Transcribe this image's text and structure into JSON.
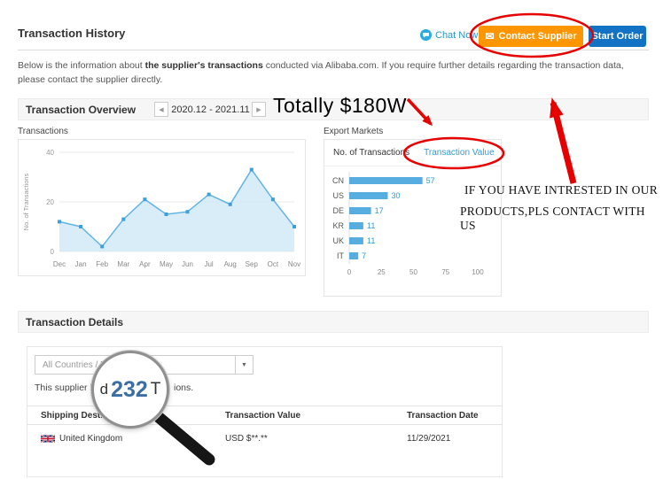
{
  "page": {
    "title": "Transaction History"
  },
  "header": {
    "chat_now": "Chat Now!",
    "contact_supplier": "Contact Supplier",
    "start_order": "Start Order"
  },
  "intro": {
    "pre": "Below is the information about ",
    "bold": "the supplier's transactions",
    "post": " conducted via Alibaba.com. If you require further details regarding the transaction data, please contact the supplier directly."
  },
  "overview": {
    "title": "Transaction Overview",
    "date_range": "2020.12 - 2021.11"
  },
  "annotations": {
    "total": "Totally $180W",
    "promo_line1": "IF YOU HAVE INTRESTED IN OUR",
    "promo_line2": "PRODUCTS,PLS CONTACT WITH US",
    "magnifier_pre": "d",
    "magnifier_number": "232",
    "magnifier_post": "T"
  },
  "icons": {
    "prev_arrow": "◀",
    "next_arrow": "▶",
    "dropdown_caret": "▼",
    "envelope": "✉"
  },
  "chart_data": [
    {
      "type": "area",
      "title": "Transactions",
      "ylabel": "No. of Transactions",
      "categories": [
        "Dec",
        "Jan",
        "Feb",
        "Mar",
        "Apr",
        "May",
        "Jun",
        "Jul",
        "Aug",
        "Sep",
        "Oct",
        "Nov"
      ],
      "values": [
        12,
        10,
        2,
        13,
        21,
        15,
        16,
        23,
        19,
        33,
        21,
        10
      ],
      "ylim": [
        0,
        40
      ],
      "yticks": [
        0,
        20,
        40
      ],
      "grid": true,
      "line_color": "#5fb4e6",
      "fill_color": "#cfe8f8",
      "marker_color": "#3f9fd8"
    },
    {
      "type": "bar",
      "title": "Export Markets",
      "orientation": "horizontal",
      "tabs": [
        "No. of Transactions",
        "Transaction Value"
      ],
      "active_tab": "No. of Transactions",
      "categories": [
        "CN",
        "US",
        "DE",
        "KR",
        "UK",
        "IT"
      ],
      "values": [
        57,
        30,
        17,
        11,
        11,
        7
      ],
      "xlim": [
        0,
        100
      ],
      "xticks": [
        0,
        25,
        50,
        75,
        100
      ],
      "bar_color": "#57ace0",
      "value_label_color": "#2f9bd8"
    }
  ],
  "details": {
    "title": "Transaction Details",
    "filter_value": "All Countries / Region",
    "summary_pre": "This supplier has com",
    "summary_post": "ions.",
    "table": {
      "headers": [
        "Shipping Destination",
        "Transaction Value",
        "Transaction Date"
      ],
      "rows": [
        {
          "destination": "United Kingdom",
          "value": "USD $**.**",
          "date": "11/29/2021"
        }
      ]
    }
  },
  "colors": {
    "accent-orange": "#ff9600",
    "accent-blue": "#1272c4",
    "link-blue": "#2f9bd8",
    "annotation-red": "#e60000",
    "chart-blue": "#57ace0"
  }
}
